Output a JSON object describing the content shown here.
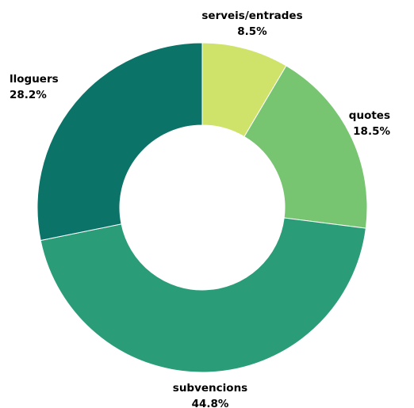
{
  "chart_data": {
    "type": "pie",
    "donut": true,
    "title": "",
    "slices": [
      {
        "label": "serveis/entrades",
        "value": 8.5,
        "value_label": "8.5%",
        "color": "#cfe36b"
      },
      {
        "label": "quotes",
        "value": 18.5,
        "value_label": "18.5%",
        "color": "#77c570"
      },
      {
        "label": "subvencions",
        "value": 44.8,
        "value_label": "44.8%",
        "color": "#2a9d78"
      },
      {
        "label": "lloguers",
        "value": 28.2,
        "value_label": "28.2%",
        "color": "#0b7368"
      }
    ],
    "legend": "none"
  }
}
